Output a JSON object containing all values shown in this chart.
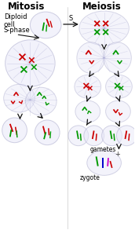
{
  "title_mitosis": "Mitosis",
  "title_meiosis": "Meiosis",
  "label_diploid": "Diploid\ncell",
  "label_sphase": "S-phase",
  "label_gametes": "gametes",
  "label_zygote": "zygote",
  "label_s": "S",
  "bg_color": "#ffffff",
  "cell_fill": "#e8e8f8",
  "cell_edge": "#aaaacc",
  "chr_red": "#cc0000",
  "chr_green": "#009900",
  "chr_blue": "#0000cc",
  "chr_magenta": "#cc00cc",
  "spindle_color": "#7777bb",
  "arrow_color": "#111111",
  "title_fontsize": 8.5,
  "label_fontsize": 6.0,
  "small_fontsize": 5.5,
  "fig_w": 1.72,
  "fig_h": 2.93,
  "dpi": 100
}
